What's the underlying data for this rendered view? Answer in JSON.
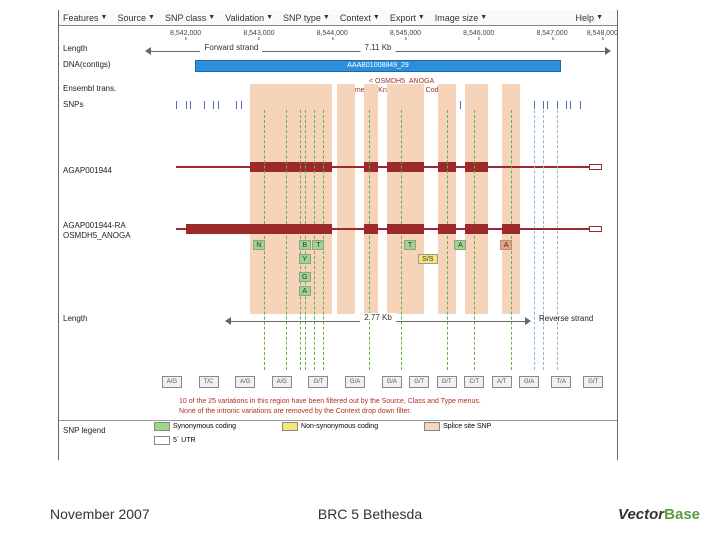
{
  "menu": {
    "items": [
      "Features",
      "Source",
      "SNP class",
      "Validation",
      "SNP type",
      "Context",
      "Export",
      "Image size"
    ],
    "right": "Help"
  },
  "ruler_top": {
    "ticks": [
      {
        "pos": 8,
        "label": "8,542,000"
      },
      {
        "pos": 24,
        "label": "8,543,000"
      },
      {
        "pos": 40,
        "label": "8,544,000"
      },
      {
        "pos": 56,
        "label": "8,545,000"
      },
      {
        "pos": 72,
        "label": "8,546,000"
      },
      {
        "pos": 88,
        "label": "8,547,000"
      },
      {
        "pos": 99,
        "label": "8,548,000"
      }
    ]
  },
  "rows": {
    "length_top": {
      "label": "Length",
      "text": "7.11 Kb",
      "strand": "Forward strand"
    },
    "dna_contigs": {
      "label": "DNA(contigs)",
      "contig": "AAAB01008849_29"
    },
    "ensembl": {
      "label": "Ensembl trans.",
      "gene1": "< OSMDH5_ANOGA",
      "gene2": "1 memb. Known Protein Coding"
    },
    "snps": {
      "label": "SNPs"
    },
    "agap": {
      "label": "AGAP001944"
    },
    "trans": {
      "label1": "AGAP001944-RA",
      "label2": "OSMDH5_ANOGA"
    },
    "length_bot": {
      "label": "Length",
      "text": "2.77 Kb",
      "strand": "Reverse strand"
    },
    "legend_label": "SNP legend"
  },
  "alleles": {
    "row1": [
      {
        "x": 24,
        "v": "N",
        "c": "green"
      },
      {
        "x": 34,
        "v": "B",
        "c": "green"
      },
      {
        "x": 37,
        "v": "T",
        "c": "green"
      },
      {
        "x": 57,
        "v": "T",
        "c": "green"
      },
      {
        "x": 68,
        "v": "A",
        "c": "green"
      },
      {
        "x": 78,
        "v": "A",
        "c": "orange"
      }
    ],
    "row2": [
      {
        "x": 34,
        "v": "Y",
        "c": "green"
      },
      {
        "x": 60,
        "v": "S/S",
        "c": "yellow"
      }
    ],
    "row3": [
      {
        "x": 34,
        "v": "G",
        "c": "green"
      }
    ],
    "row4": [
      {
        "x": 34,
        "v": "A",
        "c": "green"
      }
    ]
  },
  "snp_positions": [
    6,
    8,
    9,
    12,
    14,
    15,
    19,
    20,
    25,
    26,
    33,
    34,
    36,
    41,
    44,
    52,
    58,
    63,
    68,
    71,
    78,
    80,
    84,
    86,
    87,
    89,
    91,
    92,
    94
  ],
  "peach_blocks": [
    {
      "l": 22,
      "w": 18
    },
    {
      "l": 41,
      "w": 4
    },
    {
      "l": 47,
      "w": 3
    },
    {
      "l": 52,
      "w": 8
    },
    {
      "l": 63,
      "w": 4
    },
    {
      "l": 69,
      "w": 5
    },
    {
      "l": 77,
      "w": 4
    }
  ],
  "exons_top": [
    {
      "l": 22,
      "w": 18
    },
    {
      "l": 47,
      "w": 3
    },
    {
      "l": 52,
      "w": 8
    },
    {
      "l": 63,
      "w": 4
    },
    {
      "l": 69,
      "w": 5
    }
  ],
  "exons_bot": [
    {
      "l": 8,
      "w": 32
    },
    {
      "l": 47,
      "w": 3
    },
    {
      "l": 52,
      "w": 8
    },
    {
      "l": 63,
      "w": 4
    },
    {
      "l": 69,
      "w": 5
    },
    {
      "l": 77,
      "w": 4
    }
  ],
  "connectors_green": [
    25,
    30,
    33,
    34,
    36,
    38,
    48,
    55,
    65,
    71,
    79
  ],
  "connectors_blue": [
    84,
    86,
    89
  ],
  "bottom_pairs": [
    {
      "x": 5,
      "v": "A/G"
    },
    {
      "x": 13,
      "v": "T/C"
    },
    {
      "x": 21,
      "v": "A/G"
    },
    {
      "x": 29,
      "v": "A/G"
    },
    {
      "x": 37,
      "v": "G/T"
    },
    {
      "x": 45,
      "v": "G/A"
    },
    {
      "x": 53,
      "v": "G/A"
    },
    {
      "x": 59,
      "v": "G/T"
    },
    {
      "x": 65,
      "v": "G/T"
    },
    {
      "x": 71,
      "v": "C/T"
    },
    {
      "x": 77,
      "v": "A/T"
    },
    {
      "x": 83,
      "v": "G/A"
    },
    {
      "x": 90,
      "v": "T/A"
    },
    {
      "x": 97,
      "v": "G/T"
    }
  ],
  "notes": {
    "line1": "10 of the 25 variations in this region have been filtered out by the Source, Class and Type menus.",
    "line2": "None of the intronic variations are removed by the Context drop down filter."
  },
  "legend": {
    "items": [
      {
        "color": "green",
        "label": "Synonymous coding"
      },
      {
        "color": "yellow",
        "label": "Non-synonymous coding"
      },
      {
        "color": "peach",
        "label": "Splice site SNP"
      },
      {
        "color": "white",
        "label": "5´ UTR"
      }
    ]
  },
  "footer": {
    "date": "November 2007",
    "center": "BRC 5 Bethesda",
    "logo_vector": "Vector",
    "logo_base": "Base"
  },
  "colors": {
    "peach": "#f5d4ba",
    "exon": "#9c2a2a",
    "contig": "#2d8fdc",
    "green_line": "#5fb348",
    "blue_line": "#8fb5d9"
  }
}
